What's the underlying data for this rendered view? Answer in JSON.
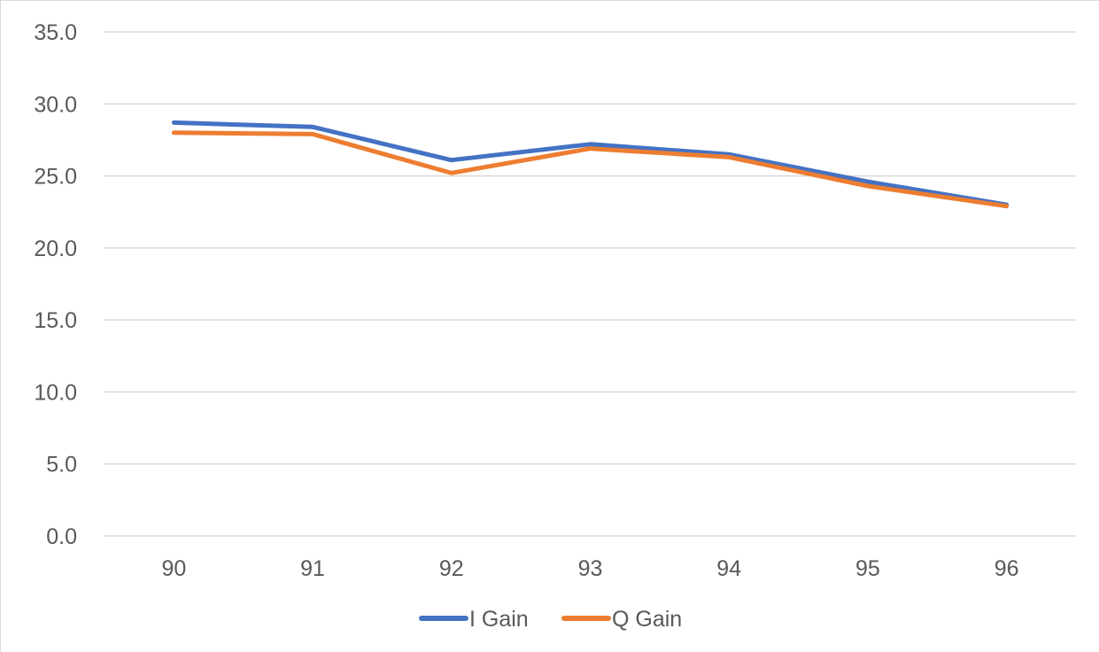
{
  "chart_data": {
    "type": "line",
    "title": "",
    "xlabel": "",
    "ylabel": "",
    "categories": [
      "90",
      "91",
      "92",
      "93",
      "94",
      "95",
      "96"
    ],
    "ylim": [
      0,
      35
    ],
    "yticks": [
      "0.0",
      "5.0",
      "10.0",
      "15.0",
      "20.0",
      "25.0",
      "30.0",
      "35.0"
    ],
    "grid": true,
    "legend_position": "bottom",
    "series": [
      {
        "name": "I Gain",
        "color": "#4472c4",
        "values": [
          28.7,
          28.4,
          26.1,
          27.2,
          26.5,
          24.6,
          23.0
        ]
      },
      {
        "name": "Q Gain",
        "color": "#ed7d31",
        "values": [
          28.0,
          27.9,
          25.2,
          26.9,
          26.3,
          24.3,
          22.9
        ]
      }
    ]
  }
}
